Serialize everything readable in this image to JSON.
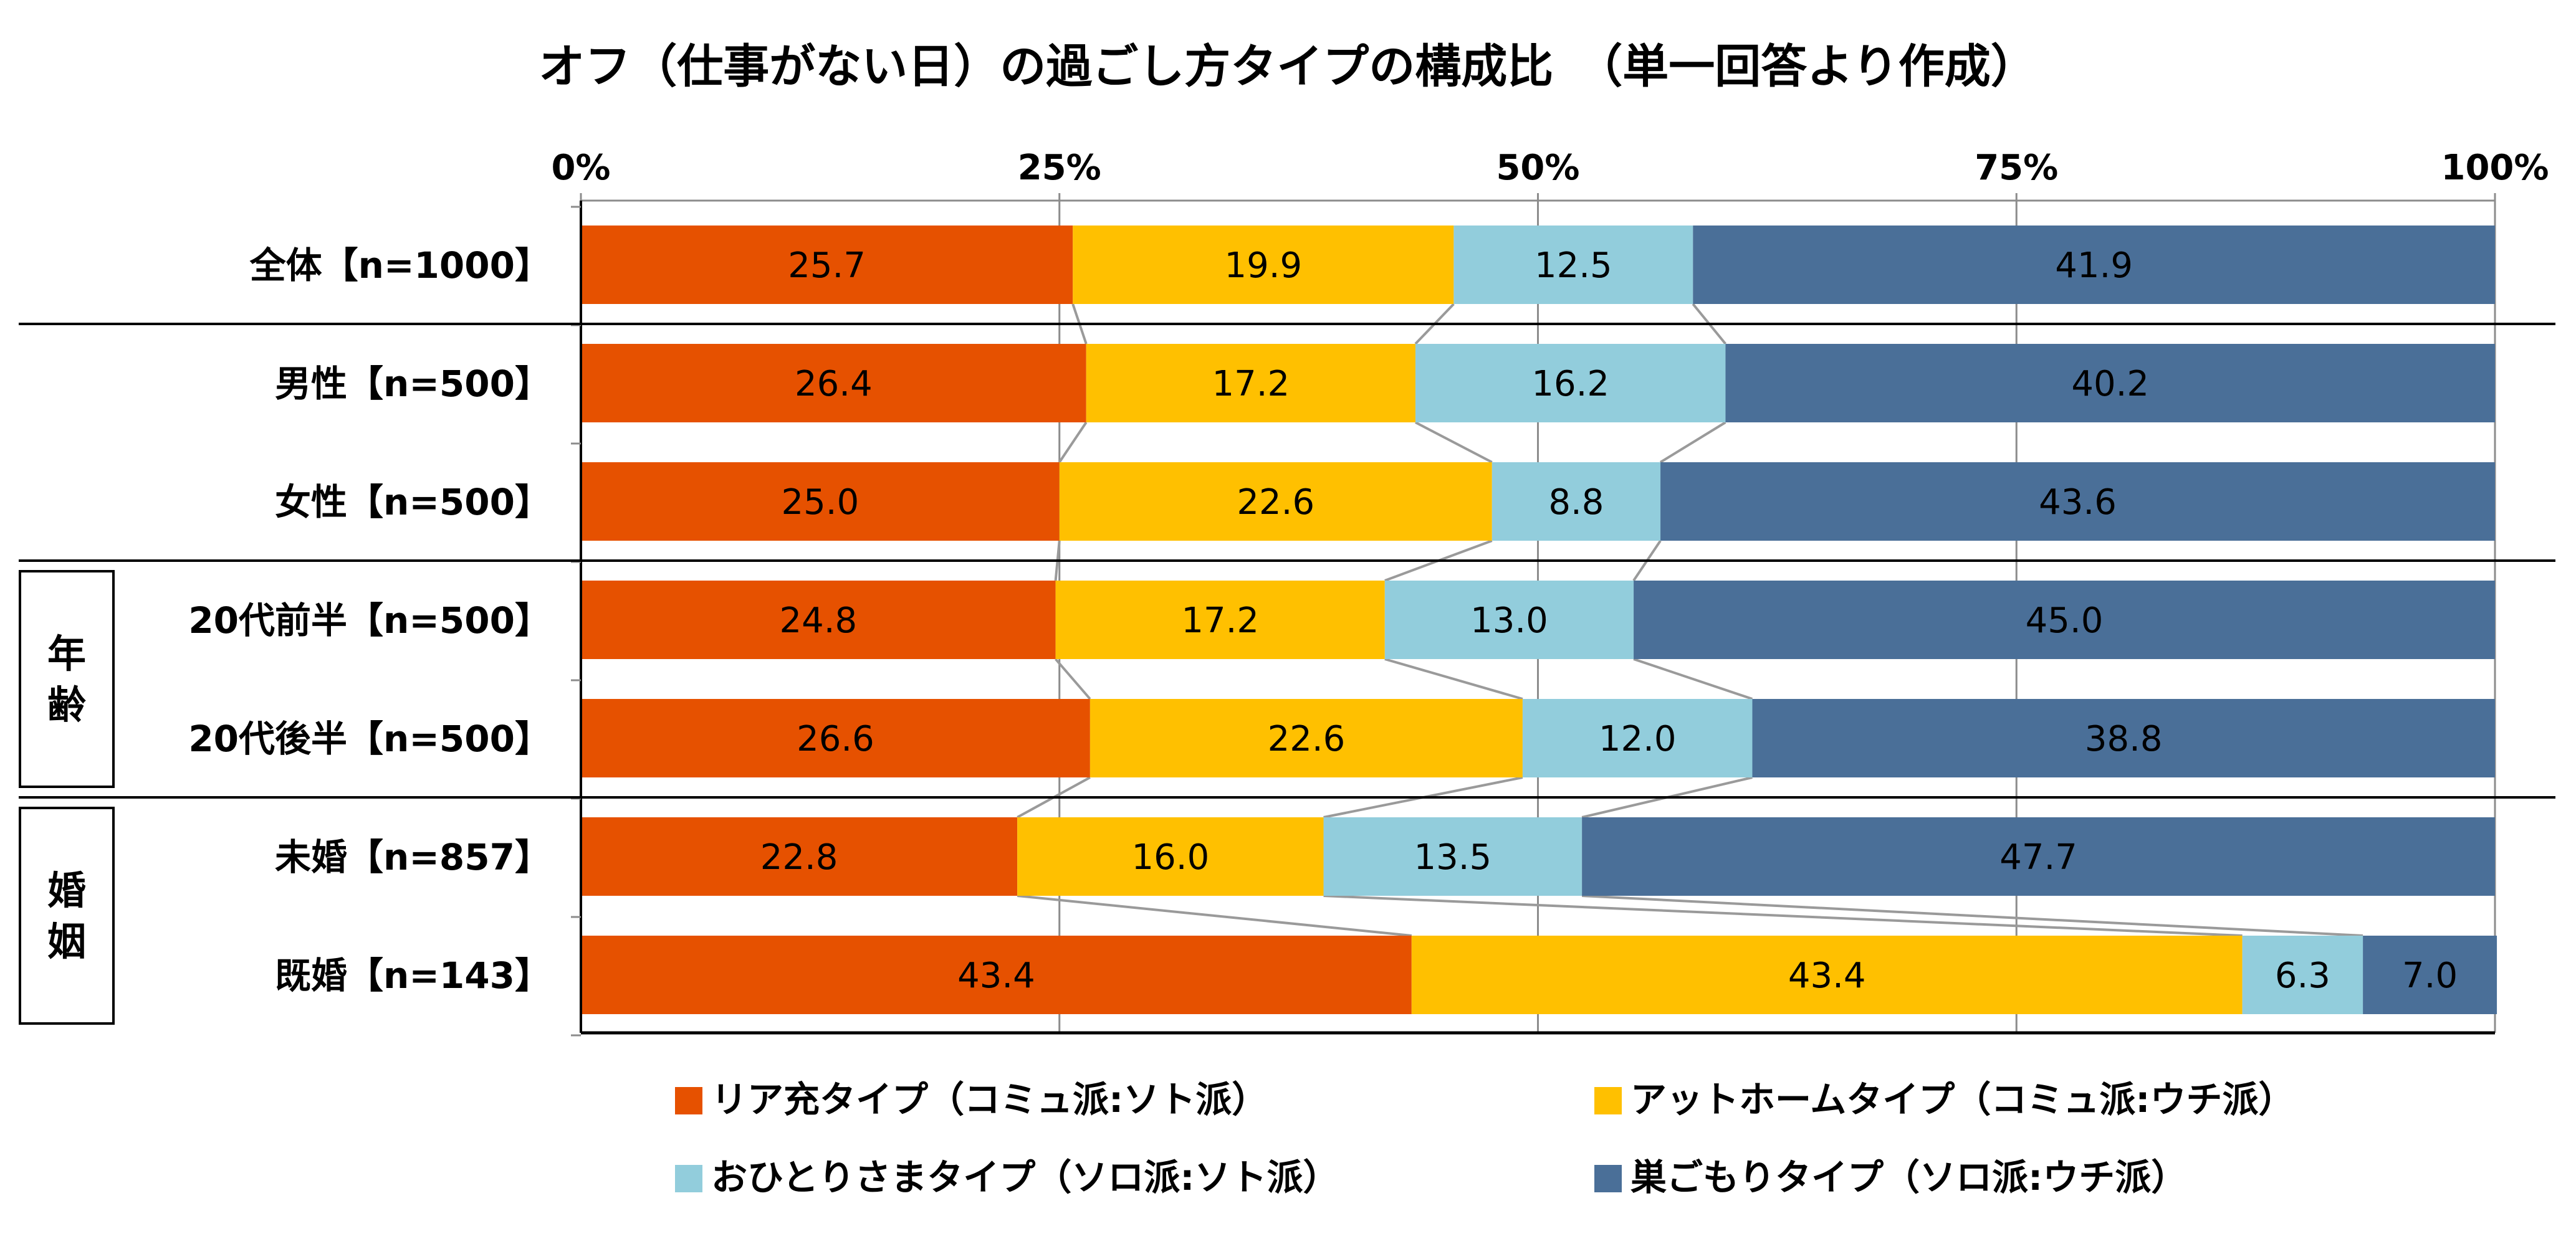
{
  "chart_data": {
    "type": "bar",
    "orientation": "horizontal",
    "stacked": "100%",
    "title": "オフ（仕事がない日）の過ごし方タイプの構成比　（単一回答より作成）",
    "x_ticks": [
      "0%",
      "25%",
      "50%",
      "75%",
      "100%"
    ],
    "xlim": [
      0,
      100
    ],
    "grid": true,
    "series_lines": true,
    "legend_position": "bottom",
    "categories": [
      "全体【n=1000】",
      "男性【n=500】",
      "女性【n=500】",
      "20代前半【n=500】",
      "20代後半【n=500】",
      "未婚【n=857】",
      "既婚【n=143】"
    ],
    "groups": [
      {
        "label": "年齢",
        "categories": [
          "20代前半【n=500】",
          "20代後半【n=500】"
        ]
      },
      {
        "label": "婚姻",
        "categories": [
          "未婚【n=857】",
          "既婚【n=143】"
        ]
      }
    ],
    "series": [
      {
        "name": "リア充タイプ（コミュ派:ソト派）",
        "color": "#E65100",
        "label_color": "#000000",
        "values": [
          25.7,
          26.4,
          25.0,
          24.8,
          26.6,
          22.8,
          43.4
        ]
      },
      {
        "name": "アットホームタイプ（コミュ派:ウチ派）",
        "color": "#FFC000",
        "label_color": "#000000",
        "values": [
          19.9,
          17.2,
          22.6,
          17.2,
          22.6,
          16.0,
          43.4
        ]
      },
      {
        "name": "おひとりさまタイプ（ソロ派:ソト派）",
        "color": "#92CDDC",
        "label_color": "#000000",
        "values": [
          12.5,
          16.2,
          8.8,
          13.0,
          12.0,
          13.5,
          6.3
        ]
      },
      {
        "name": "巣ごもりタイプ（ソロ派:ウチ派）",
        "color": "#4A6F98",
        "label_color": "#ffffff",
        "values": [
          41.9,
          40.2,
          43.6,
          45.0,
          38.8,
          47.7,
          7.0
        ]
      }
    ],
    "value_labels": [
      [
        "25.7",
        "26.4",
        "25.0",
        "24.8",
        "26.6",
        "22.8",
        "43.4"
      ],
      [
        "19.9",
        "17.2",
        "22.6",
        "17.2",
        "22.6",
        "16.0",
        "43.4"
      ],
      [
        "12.5",
        "16.2",
        "8.8",
        "13.0",
        "12.0",
        "13.5",
        "6.3"
      ],
      [
        "41.9",
        "40.2",
        "43.6",
        "45.0",
        "38.8",
        "47.7",
        "7.0"
      ]
    ]
  }
}
